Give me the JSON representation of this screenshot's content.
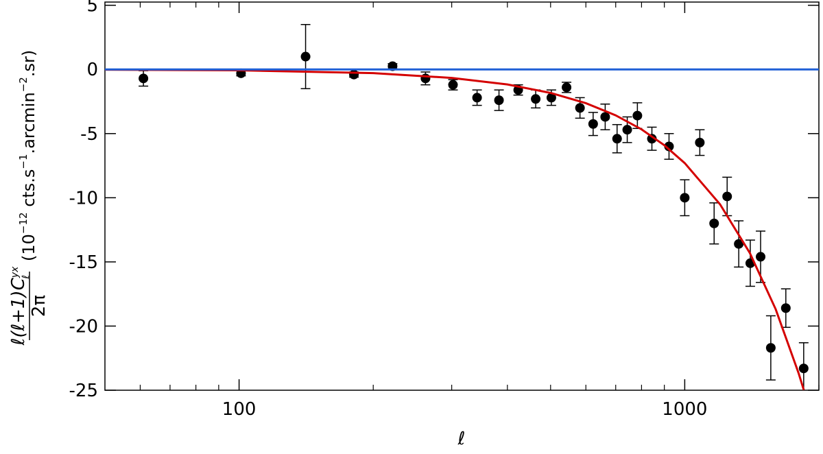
{
  "chart_data": {
    "type": "errorbar",
    "xlabel": "ℓ",
    "ylabel": {
      "numerator": "ℓ(ℓ+1)C",
      "sub": "ℓ",
      "sup": "yx",
      "denominator": "2π",
      "units": [
        "(10",
        "−12",
        " cts.s",
        "−1",
        ".arcmin",
        "−2",
        ".sr)"
      ]
    },
    "xscale": "log",
    "xlim": [
      50,
      2000
    ],
    "ylim": [
      -25,
      5.25
    ],
    "xticks": [
      100,
      1000
    ],
    "xminorticks": [
      60,
      70,
      80,
      90,
      200,
      300,
      400,
      500,
      600,
      700,
      800,
      900,
      2000
    ],
    "yticks": [
      -25,
      -20,
      -15,
      -10,
      -5,
      0,
      5
    ],
    "series": [
      {
        "kind": "points",
        "color": "#000000",
        "x": [
          61,
          101,
          141,
          181,
          221,
          262,
          302,
          342,
          383,
          423,
          463,
          502,
          543,
          582,
          623,
          663,
          705,
          743,
          783,
          844,
          922,
          1000,
          1081,
          1164,
          1245,
          1322,
          1403,
          1480,
          1560,
          1686,
          1849
        ],
        "values": [
          -0.7,
          -0.3,
          1.0,
          -0.4,
          0.25,
          -0.7,
          -1.2,
          -2.2,
          -2.4,
          -1.6,
          -2.3,
          -2.2,
          -1.4,
          -3.0,
          -4.25,
          -3.7,
          -5.4,
          -4.7,
          -3.6,
          -5.4,
          -6.0,
          -10.0,
          -5.7,
          -12.0,
          -9.9,
          -13.6,
          -15.1,
          -14.6,
          -21.7,
          -18.6,
          -23.3
        ],
        "errors": [
          0.6,
          0.2,
          2.5,
          0.2,
          0.2,
          0.5,
          0.4,
          0.6,
          0.8,
          0.4,
          0.7,
          0.6,
          0.4,
          0.8,
          0.9,
          1.0,
          1.1,
          1.0,
          1.0,
          0.9,
          1.0,
          1.4,
          1.0,
          1.6,
          1.5,
          1.8,
          1.8,
          2.0,
          2.5,
          1.5,
          2.0
        ]
      },
      {
        "kind": "line",
        "color": "#d40000",
        "x": [
          50,
          100,
          200,
          300,
          400,
          500,
          600,
          700,
          800,
          900,
          1000,
          1200,
          1400,
          1600,
          1800,
          1850
        ],
        "values": [
          -0.02,
          -0.07,
          -0.29,
          -0.66,
          -1.17,
          -1.83,
          -2.63,
          -3.58,
          -4.67,
          -5.91,
          -7.3,
          -10.51,
          -14.31,
          -18.69,
          -23.65,
          -24.98
        ]
      },
      {
        "kind": "line",
        "color": "#1f5fd6",
        "x": [
          50,
          2000
        ],
        "values": [
          0,
          0
        ]
      }
    ]
  }
}
